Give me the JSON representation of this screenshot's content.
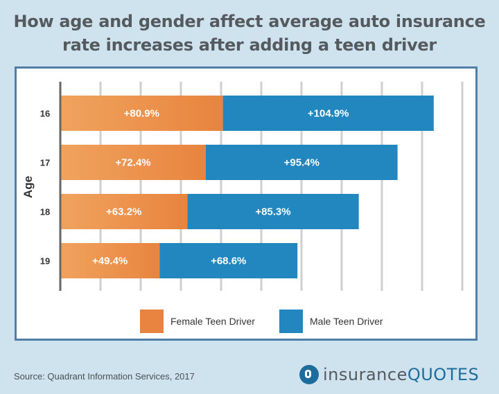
{
  "title_lines": [
    "How age and gender affect average auto insurance",
    "rate increases after adding a teen driver"
  ],
  "colors": {
    "female": "#e8843f",
    "male": "#2286bf",
    "grid": "#cfcfcf",
    "axis": "#666666",
    "bar_text": "#ffffff"
  },
  "chart_data": {
    "type": "bar",
    "orientation": "horizontal",
    "stacked": true,
    "ylabel": "Age",
    "xlabel": "",
    "categories": [
      "16",
      "17",
      "18",
      "19"
    ],
    "series": [
      {
        "name": "Female Teen Driver",
        "values": [
          80.9,
          72.4,
          63.2,
          49.4
        ],
        "labels": [
          "+80.9%",
          "+72.4%",
          "+63.2%",
          "+49.4%"
        ]
      },
      {
        "name": "Male Teen Driver",
        "values": [
          104.9,
          95.4,
          85.3,
          68.6
        ],
        "labels": [
          "+104.9%",
          "+95.4%",
          "+85.3%",
          "+68.6%"
        ]
      }
    ],
    "xlim": [
      0,
      210
    ],
    "grid": true,
    "x_tick_labels_shown": false,
    "legend_position": "bottom"
  },
  "legend": [
    {
      "label": "Female Teen Driver",
      "color": "#e8843f"
    },
    {
      "label": "Male Teen Driver",
      "color": "#2286bf"
    }
  ],
  "source": "Source:  Quadrant Information Services, 2017",
  "brand": {
    "word1": "insurance",
    "word2": "QUOTES",
    "icon": "brand-logo-icon"
  }
}
